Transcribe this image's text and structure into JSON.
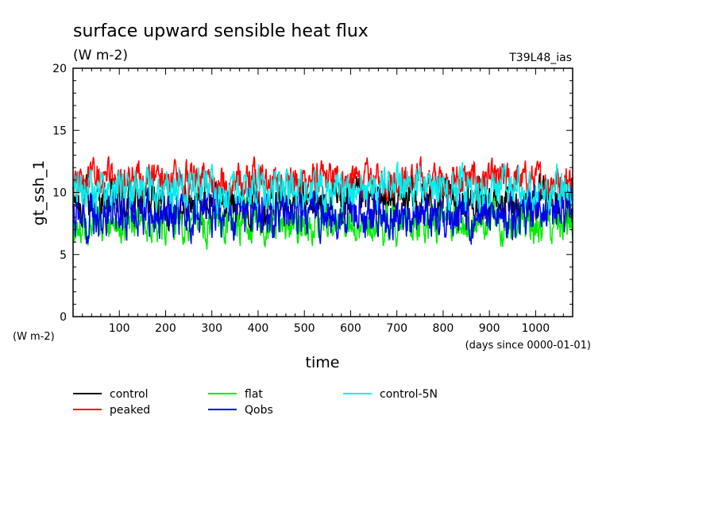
{
  "chart_data": {
    "type": "line",
    "title": "surface upward sensible heat flux",
    "units": "(W m-2)",
    "experiment_tag": "T39L48_ias",
    "xlabel": "time",
    "xunits": "(days since 0000-01-01)",
    "ylabel": "gt_ssh_1",
    "yunits": "(W m-2)",
    "xlim": [
      0,
      1080
    ],
    "ylim": [
      0,
      20
    ],
    "xticks": [
      100,
      200,
      300,
      400,
      500,
      600,
      700,
      800,
      900,
      1000
    ],
    "yticks": [
      0,
      5,
      10,
      15,
      20
    ],
    "grid": false,
    "legend_position": "bottom-left",
    "series": [
      {
        "name": "control",
        "color": "#000000",
        "mean": 9.2,
        "amplitude": 1.5,
        "points": 1080
      },
      {
        "name": "peaked",
        "color": "#ff0000",
        "mean": 11.0,
        "amplitude": 1.2,
        "points": 1080
      },
      {
        "name": "flat",
        "color": "#00ee00",
        "mean": 7.5,
        "amplitude": 1.3,
        "points": 1080
      },
      {
        "name": "Qobs",
        "color": "#0000ee",
        "mean": 8.2,
        "amplitude": 1.6,
        "points": 1080
      },
      {
        "name": "control-5N",
        "color": "#00eeee",
        "mean": 10.2,
        "amplitude": 1.4,
        "points": 1080
      }
    ]
  }
}
